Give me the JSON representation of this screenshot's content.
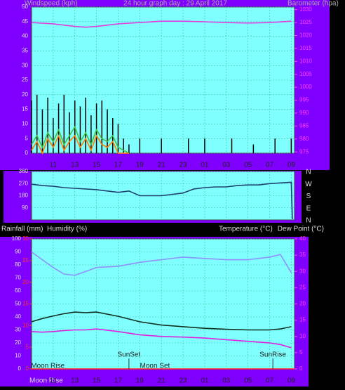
{
  "chart_data": [
    {
      "type": "combo",
      "title": "24 hour graph day : 29 April 2017",
      "ylabel": "Windspeed (kph)",
      "y2label": "Barometer (hpa)",
      "xlim": [
        9,
        33.3
      ],
      "xticks": [
        11,
        13,
        15,
        17,
        19,
        21,
        23,
        {
          "value": 25,
          "label": "01"
        },
        {
          "value": 27,
          "label": "03"
        },
        {
          "value": 29,
          "label": "05"
        },
        {
          "value": 31,
          "label": "07"
        },
        {
          "value": 33,
          "label": "09"
        }
      ],
      "ylim": [
        0,
        50
      ],
      "yticks": [
        0,
        5,
        10,
        15,
        20,
        25,
        30,
        35,
        40,
        45,
        50
      ],
      "y2lim": [
        974.5,
        1031
      ],
      "y2ticks": [
        975,
        980,
        985,
        990,
        995,
        1000,
        1005,
        1010,
        1015,
        1020,
        1025,
        1030
      ],
      "grid": true,
      "series": [
        {
          "kind": "bar",
          "color": "#000000",
          "x": [
            9,
            9.5,
            10,
            10.5,
            11,
            11.5,
            12,
            12.5,
            13,
            13.5,
            14,
            14.5,
            15,
            15.5,
            16,
            16.5,
            17,
            17.5,
            18,
            19,
            21,
            23.5,
            25,
            27.5,
            29.5,
            31.5,
            33
          ],
          "values": [
            18,
            20,
            15,
            19,
            12,
            17,
            20,
            14,
            18,
            16,
            19,
            13,
            17,
            18,
            15,
            12,
            10,
            5,
            3,
            5,
            5,
            5,
            5,
            5,
            3,
            5,
            5
          ]
        },
        {
          "kind": "line",
          "color": "#40c040",
          "x": [
            9,
            9.5,
            10,
            10.5,
            11,
            11.5,
            12,
            12.5,
            13,
            13.5,
            14,
            14.5,
            15,
            15.5,
            16,
            16.5,
            17,
            17.5,
            18
          ],
          "values": [
            3,
            6,
            2,
            7,
            4,
            8,
            3,
            6,
            9,
            4,
            7,
            3,
            8,
            5,
            4,
            6,
            2,
            1,
            0
          ]
        },
        {
          "kind": "line",
          "color": "#ff8000",
          "x": [
            9,
            9.5,
            10,
            10.5,
            11,
            11.5,
            12,
            12.5,
            13,
            13.5,
            14,
            14.5,
            15,
            15.5,
            16,
            16.5,
            17,
            17.5,
            18
          ],
          "values": [
            1,
            4,
            0,
            5,
            2,
            6,
            1,
            4,
            6,
            2,
            5,
            1,
            6,
            3,
            2,
            4,
            0,
            0,
            0
          ]
        },
        {
          "kind": "line",
          "color": "#e040e0",
          "axis": "y2",
          "x": [
            9,
            11,
            13,
            14,
            15,
            17,
            19,
            21,
            23,
            25,
            27,
            29,
            31,
            33
          ],
          "values": [
            1025,
            1024.5,
            1023.5,
            1023.2,
            1023.5,
            1024.5,
            1025,
            1025.5,
            1025.5,
            1025.3,
            1025,
            1024.8,
            1025,
            1025.5
          ]
        }
      ]
    },
    {
      "type": "line",
      "xlim": [
        9,
        33.3
      ],
      "ylim": [
        0,
        360
      ],
      "yticks": [
        90,
        180,
        270,
        360
      ],
      "compass": [
        "N",
        "W",
        "S",
        "E",
        "N"
      ],
      "grid": true,
      "series": [
        {
          "kind": "line",
          "color": "#204070",
          "x": [
            9,
            10,
            11,
            12,
            13,
            14,
            15,
            16,
            17,
            17.5,
            18,
            19,
            21,
            23,
            24,
            25,
            26,
            27,
            28,
            29,
            30,
            31,
            32,
            33,
            33.1
          ],
          "values": [
            265,
            255,
            250,
            240,
            235,
            230,
            225,
            215,
            205,
            210,
            215,
            180,
            180,
            200,
            230,
            240,
            245,
            245,
            255,
            260,
            260,
            270,
            275,
            280,
            5
          ]
        }
      ]
    },
    {
      "type": "line",
      "ylabel": "Humidity (%)",
      "y3label": "Rainfall (mm)",
      "y2labels": [
        "Temperature (°C)",
        "Dew Point (°C)"
      ],
      "xlim": [
        9,
        33.3
      ],
      "xticks": [
        11,
        13,
        15,
        17,
        19,
        21,
        23,
        {
          "value": 25,
          "label": "01"
        },
        {
          "value": 27,
          "label": "03"
        },
        {
          "value": 29,
          "label": "05"
        },
        {
          "value": 31,
          "label": "07"
        },
        {
          "value": 33,
          "label": "09"
        }
      ],
      "ylim": [
        0,
        100
      ],
      "yticks": [
        0,
        10,
        20,
        30,
        40,
        50,
        60,
        70,
        80,
        90,
        100
      ],
      "y2lim": [
        0,
        40
      ],
      "y2ticks": [
        0,
        5,
        10,
        15,
        20,
        25,
        30,
        35,
        40
      ],
      "y3lim": [
        0,
        30
      ],
      "y3ticks": [
        0,
        5,
        10,
        15,
        20,
        25,
        30
      ],
      "grid": true,
      "sun_events": [
        {
          "text": "SunSet",
          "x": 18
        },
        {
          "text": "SunRise",
          "x": 31.3
        }
      ],
      "moon_events": [
        {
          "text": "Moon Rise",
          "x": 10.5
        },
        {
          "text": "Moon Set",
          "x": 20.4
        }
      ],
      "footer_label": "Moon Rise",
      "series": [
        {
          "kind": "line",
          "color": "#9090ff",
          "x": [
            9,
            10,
            11,
            12,
            13,
            14,
            15,
            17,
            19,
            21,
            23,
            25,
            27,
            29,
            31,
            32,
            33
          ],
          "values": [
            90,
            84,
            78,
            73,
            72,
            75,
            78,
            79,
            82,
            84,
            86,
            85,
            84,
            84,
            86,
            88,
            74
          ]
        },
        {
          "kind": "line",
          "color": "#103020",
          "axis": "y2",
          "x": [
            9,
            10,
            11,
            12,
            13,
            14,
            15,
            17,
            19,
            21,
            23,
            25,
            27,
            29,
            31,
            32,
            33
          ],
          "values": [
            14.5,
            15.5,
            16.3,
            17,
            17.5,
            17.3,
            17.5,
            16.2,
            14.5,
            13.5,
            13,
            12.5,
            12.2,
            12,
            12,
            12.3,
            13
          ]
        },
        {
          "kind": "line",
          "color": "#e020e0",
          "axis": "y2",
          "x": [
            9,
            10,
            11,
            12,
            13,
            14,
            15,
            17,
            19,
            21,
            23,
            25,
            27,
            29,
            31,
            32,
            33
          ],
          "values": [
            11.5,
            11.3,
            11.5,
            11.8,
            12,
            12,
            12.3,
            11.5,
            10.5,
            10,
            9.8,
            9.5,
            9,
            8.5,
            8,
            7.5,
            6.5
          ]
        },
        {
          "kind": "line",
          "color": "#ff2020",
          "axis": "y3",
          "x": [
            9,
            33.3
          ],
          "values": [
            0,
            0
          ]
        }
      ]
    }
  ]
}
